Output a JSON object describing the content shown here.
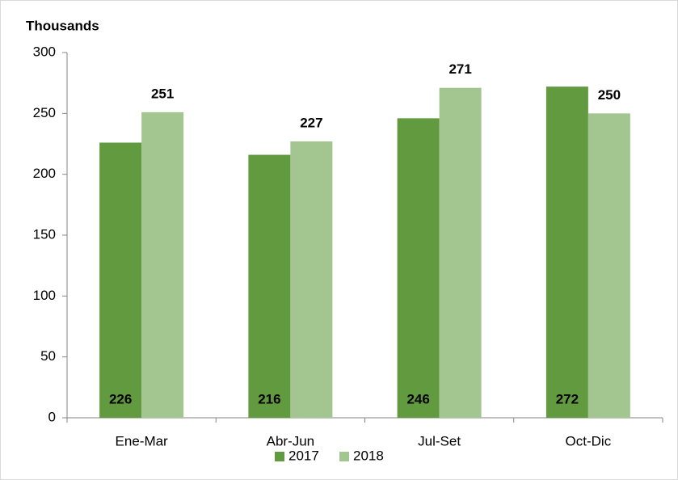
{
  "chart_data": {
    "type": "bar",
    "y_axis_label": "Thousands",
    "categories": [
      "Ene-Mar",
      "Abr-Jun",
      "Jul-Set",
      "Oct-Dic"
    ],
    "series": [
      {
        "name": "2017",
        "color": "#629a3f",
        "values": [
          226,
          216,
          246,
          272
        ]
      },
      {
        "name": "2018",
        "color": "#a3c58f",
        "values": [
          251,
          227,
          271,
          250
        ]
      }
    ],
    "ylim": [
      0,
      300
    ],
    "yticks": [
      0,
      50,
      100,
      150,
      200,
      250,
      300
    ],
    "grid": false,
    "legend": "bottom"
  }
}
